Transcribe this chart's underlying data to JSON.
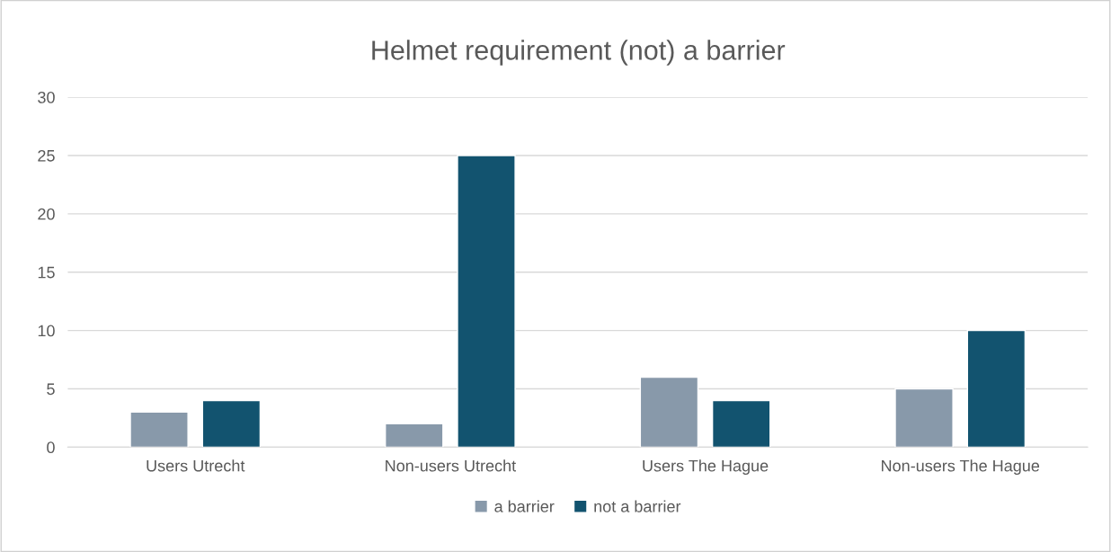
{
  "chart_data": {
    "type": "bar",
    "title": "Helmet requirement (not) a barrier",
    "categories": [
      "Users Utrecht",
      "Non-users Utrecht",
      "Users The Hague",
      "Non-users The Hague"
    ],
    "series": [
      {
        "name": "a barrier",
        "color": "#8899aa",
        "values": [
          3,
          2,
          6,
          5
        ]
      },
      {
        "name": "not a barrier",
        "color": "#12536f",
        "values": [
          4,
          25,
          4,
          10
        ]
      }
    ],
    "ylim": [
      0,
      30
    ],
    "yticks": [
      0,
      5,
      10,
      15,
      20,
      25,
      30
    ],
    "grid": "y",
    "legend": "bottom"
  }
}
